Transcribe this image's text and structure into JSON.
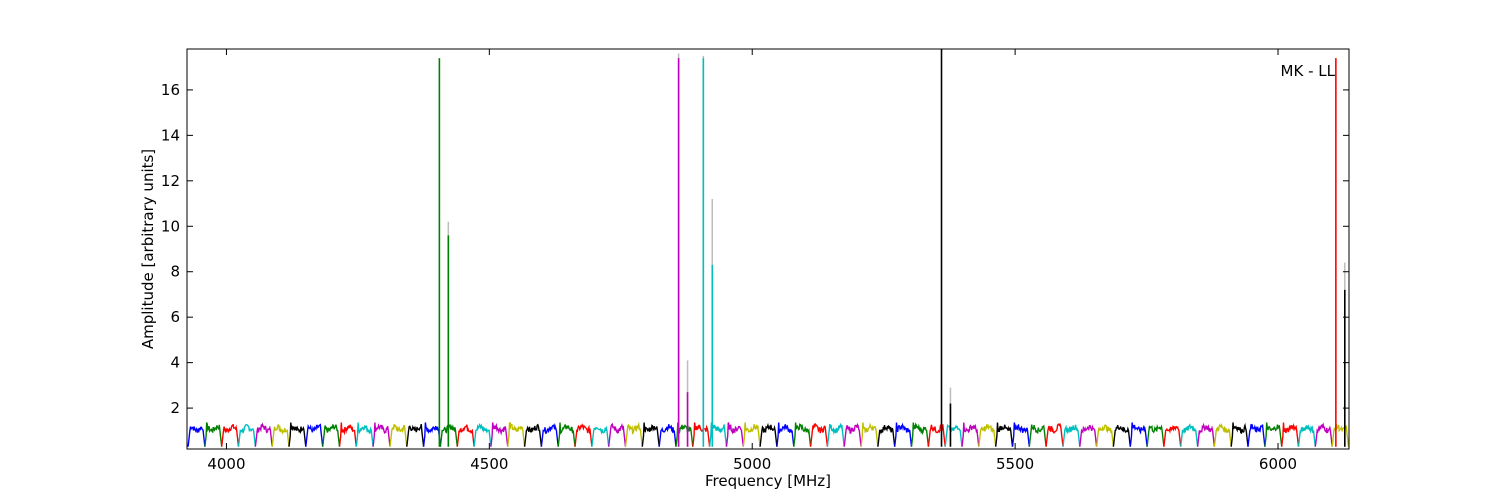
{
  "chart_data": {
    "type": "line",
    "xlabel": "Frequency [MHz]",
    "ylabel": "Amplitude [arbitrary units]",
    "annotation": "MK - LL",
    "xlim": [
      3925,
      6135
    ],
    "ylim": [
      0.2,
      17.8
    ],
    "xticks": [
      4000,
      4500,
      5000,
      5500,
      6000
    ],
    "yticks": [
      2,
      4,
      6,
      8,
      10,
      12,
      14,
      16
    ],
    "grid": false,
    "legend": "none",
    "palette": [
      "#0000ff",
      "#008000",
      "#ff0000",
      "#00bfbf",
      "#bf00bf",
      "#bfbf00",
      "#000000"
    ],
    "subband_width_mhz": 32,
    "subband_baseline": 1.1,
    "subband_edge_dip": 0.3,
    "spikes": [
      {
        "x": 4405,
        "y": 17.4,
        "color": "#008000"
      },
      {
        "x": 4422,
        "y": 9.6,
        "color": "#008000",
        "ghost_y": 10.2
      },
      {
        "x": 4860,
        "y": 17.4,
        "color": "#bf00bf",
        "ghost_y": 17.6
      },
      {
        "x": 4877,
        "y": 2.7,
        "color": "#bf00bf",
        "ghost_y": 4.1
      },
      {
        "x": 4907,
        "y": 17.4,
        "color": "#00bfbf",
        "ghost_y": 17.5
      },
      {
        "x": 4924,
        "y": 8.3,
        "color": "#00bfbf",
        "ghost_y": 11.2
      },
      {
        "x": 5360,
        "y": 17.8,
        "color": "#000000"
      },
      {
        "x": 5377,
        "y": 2.2,
        "color": "#000000",
        "ghost_y": 2.9
      },
      {
        "x": 6110,
        "y": 17.4,
        "color": "#ff0000"
      },
      {
        "x": 6127,
        "y": 7.2,
        "color": "#000000",
        "ghost_y": 8.4
      }
    ]
  }
}
